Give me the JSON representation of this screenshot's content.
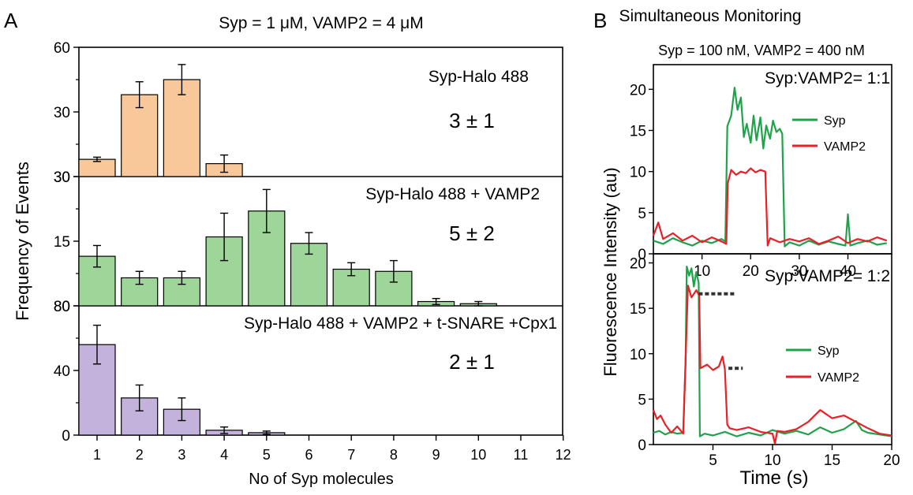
{
  "figure": {
    "panel_a_letter": "A",
    "panel_b_letter": "B",
    "panel_a_title": "Syp = 1 μM, VAMP2 = 4 μM",
    "panel_a_ylabel": "Frequency of Events",
    "panel_a_xlabel": "No of Syp molecules",
    "panel_b_title": "Simultaneous Monitoring",
    "panel_b_subtitle": "Syp = 100 nM, VAMP2 = 400 nM",
    "panel_b_ylabel": "Fluorescence Intensity (au)",
    "panel_b_xlabel": "Time (s)"
  },
  "chart_data": [
    {
      "type": "bar",
      "panel": "A-top",
      "annotation": "Syp-Halo 488",
      "result": "3 ± 1",
      "color": "#F8C89A",
      "x_ticks": [
        "1",
        "2",
        "3",
        "4",
        "5",
        "6",
        "7",
        "8",
        "9",
        "10",
        "11",
        "12"
      ],
      "y_ticks": [
        "30",
        "30",
        "60"
      ],
      "ylim": [
        0,
        60
      ],
      "x": [
        1,
        2,
        3,
        4
      ],
      "values": [
        8,
        38,
        45,
        6
      ],
      "errors": [
        1,
        6,
        7,
        4
      ]
    },
    {
      "type": "bar",
      "panel": "A-middle",
      "annotation": "Syp-Halo 488 + VAMP2",
      "result": "5 ± 2",
      "color": "#9ED69A",
      "y_ticks": [
        "80",
        "15",
        "30"
      ],
      "ylim": [
        0,
        30
      ],
      "x": [
        1,
        2,
        3,
        4,
        5,
        6,
        7,
        8,
        9,
        10
      ],
      "values": [
        11.5,
        6.5,
        6.5,
        16,
        22,
        14.5,
        8.5,
        8,
        1,
        0.5
      ],
      "errors": [
        2.5,
        1.5,
        1.5,
        5.5,
        5,
        2.5,
        1.5,
        2.5,
        0.7,
        0.5
      ]
    },
    {
      "type": "bar",
      "panel": "A-bottom",
      "annotation": "Syp-Halo 488 + VAMP2 + t-SNARE +Cpx1",
      "result": "2 ± 1",
      "color": "#C3B2DB",
      "y_ticks": [
        "0",
        "40",
        "80"
      ],
      "ylim": [
        0,
        80
      ],
      "x": [
        1,
        2,
        3,
        4,
        5
      ],
      "values": [
        56,
        23,
        16,
        3,
        1.5
      ],
      "errors": [
        12,
        8,
        7,
        2,
        1
      ]
    },
    {
      "type": "line",
      "panel": "B-top",
      "annotation": "Syp:VAMP2= 1:1",
      "xlim": [
        0,
        49
      ],
      "ylim": [
        0,
        23
      ],
      "x_ticks": [
        "10",
        "20",
        "30",
        "40"
      ],
      "y_ticks": [
        "0",
        "5",
        "10",
        "15",
        "20"
      ],
      "series": [
        {
          "name": "Syp",
          "color": "#1FA34A",
          "x": [
            0,
            2,
            4,
            6,
            8,
            10,
            12,
            14,
            14.8,
            15.2,
            16,
            16.7,
            17.3,
            18,
            18.6,
            19.2,
            20,
            20.6,
            21.2,
            22,
            22.6,
            23.2,
            24,
            24.6,
            25.3,
            26,
            26.5,
            27,
            28,
            30,
            32,
            34,
            36,
            38,
            39.5,
            40,
            40.5,
            42,
            44,
            46,
            48
          ],
          "values": [
            1.6,
            1.2,
            1.9,
            1.4,
            1.0,
            1.6,
            1.3,
            1.8,
            1.5,
            15.5,
            16.8,
            20.2,
            17.5,
            19.0,
            14.2,
            15.8,
            13.5,
            16.8,
            13.8,
            16.6,
            12.8,
            15.6,
            14.0,
            16.2,
            14.8,
            15.2,
            14.6,
            0.9,
            1.4,
            1.0,
            1.6,
            1.1,
            1.5,
            1.2,
            1.0,
            4.8,
            1.0,
            1.3,
            1.6,
            1.1,
            1.3
          ]
        },
        {
          "name": "VAMP2",
          "color": "#E8202A",
          "x": [
            0,
            1,
            2,
            4,
            6,
            8,
            10,
            12,
            14,
            15,
            15.3,
            16,
            17,
            18,
            19,
            20,
            21,
            22,
            23,
            23.5,
            24,
            26,
            28,
            30,
            32,
            34,
            36,
            38,
            40,
            42,
            44,
            46,
            48
          ],
          "values": [
            2.2,
            3.8,
            1.8,
            2.5,
            1.6,
            2.2,
            1.4,
            2.0,
            1.5,
            1.2,
            8.6,
            10.2,
            9.6,
            10.0,
            9.8,
            10.4,
            9.9,
            10.2,
            10.0,
            1.0,
            1.9,
            1.4,
            1.8,
            1.5,
            1.9,
            1.2,
            1.6,
            2.1,
            1.3,
            1.8,
            1.5,
            2.0,
            1.6
          ]
        }
      ]
    },
    {
      "type": "line",
      "panel": "B-bottom",
      "annotation": "Syp:VAMP2= 1:2",
      "xlim": [
        0,
        20
      ],
      "ylim": [
        0,
        21
      ],
      "x_ticks": [
        "5",
        "10",
        "15",
        "20"
      ],
      "y_ticks": [
        "0",
        "5",
        "10",
        "15",
        "20"
      ],
      "series": [
        {
          "name": "Syp",
          "color": "#1FA34A",
          "x": [
            0,
            0.5,
            1,
            1.5,
            2,
            2.5,
            2.7,
            2.8,
            3.0,
            3.2,
            3.4,
            3.6,
            3.8,
            3.9,
            4.3,
            5,
            6,
            7,
            8,
            9,
            10,
            11,
            12,
            13,
            14,
            15,
            16,
            17,
            17.5,
            18,
            19,
            20
          ],
          "values": [
            1.3,
            1.5,
            1.1,
            1.4,
            1.2,
            1.3,
            9.0,
            19.6,
            18.6,
            19.4,
            17.4,
            19.0,
            17.8,
            0.9,
            1.2,
            1.0,
            1.4,
            0.9,
            1.3,
            1.0,
            1.6,
            1.2,
            1.5,
            1.1,
            1.9,
            1.3,
            1.7,
            2.6,
            1.6,
            1.3,
            1.1,
            0.9
          ]
        },
        {
          "name": "VAMP2",
          "color": "#E8202A",
          "x": [
            0,
            0.3,
            0.6,
            1,
            1.5,
            2,
            2.5,
            2.9,
            3.2,
            3.6,
            3.85,
            3.95,
            4.5,
            5,
            5.5,
            5.8,
            6.0,
            6.2,
            6.4,
            7,
            8,
            9,
            10,
            10.2,
            10.4,
            11,
            12,
            13,
            14,
            15,
            16,
            17,
            18,
            19,
            20
          ],
          "values": [
            3.8,
            2.8,
            3.2,
            2.2,
            1.3,
            2.0,
            1.2,
            17.5,
            16.2,
            17.0,
            16.4,
            8.4,
            8.8,
            8.2,
            8.6,
            9.7,
            8.3,
            2.2,
            1.8,
            1.6,
            1.9,
            1.4,
            1.2,
            0.1,
            1.5,
            1.4,
            1.7,
            2.5,
            3.8,
            2.9,
            3.2,
            2.5,
            1.8,
            1.2,
            1.0
          ]
        }
      ],
      "dotted_levels": [
        {
          "x": [
            3.8,
            6.8
          ],
          "value": 16.6
        },
        {
          "x": [
            6.3,
            7.5
          ],
          "value": 8.4
        }
      ]
    }
  ]
}
